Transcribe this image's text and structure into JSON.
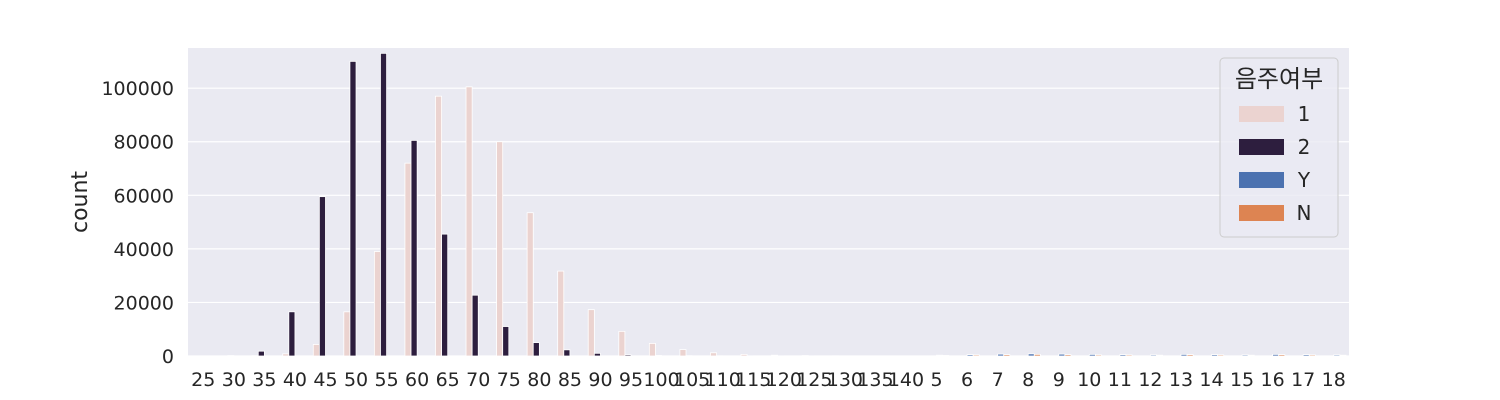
{
  "chart_data": {
    "type": "bar",
    "title": "",
    "xlabel": "",
    "ylabel": "count",
    "ylim": [
      0,
      115000
    ],
    "grid": true,
    "legend_placement": "top-right",
    "yticks": [
      0,
      20000,
      40000,
      60000,
      80000,
      100000
    ],
    "categories": [
      "25",
      "30",
      "35",
      "40",
      "45",
      "50",
      "55",
      "60",
      "65",
      "70",
      "75",
      "80",
      "85",
      "90",
      "95",
      "100",
      "105",
      "110",
      "115",
      "120",
      "125",
      "130",
      "135",
      "140",
      "5",
      "6",
      "7",
      "8",
      "9",
      "10",
      "11",
      "12",
      "13",
      "14",
      "15",
      "16",
      "17",
      "18"
    ],
    "legend_title": "음주여부",
    "series": [
      {
        "name": "1",
        "color": "#EBD3D0",
        "values": [
          0,
          0,
          100,
          800,
          4300,
          16500,
          39000,
          72000,
          97000,
          100500,
          80000,
          53500,
          31700,
          17300,
          9200,
          4700,
          2400,
          1200,
          600,
          300,
          150,
          80,
          40,
          20,
          0,
          0,
          0,
          0,
          0,
          0,
          0,
          0,
          0,
          0,
          0,
          0,
          0,
          0
        ]
      },
      {
        "name": "2",
        "color": "#2D1E3E",
        "values": [
          0,
          150,
          1800,
          16500,
          59500,
          110000,
          113000,
          80500,
          45500,
          22700,
          11000,
          5000,
          2300,
          1000,
          450,
          200,
          100,
          50,
          25,
          15,
          8,
          4,
          2,
          1,
          0,
          0,
          0,
          0,
          0,
          0,
          0,
          0,
          0,
          0,
          0,
          0,
          0,
          0
        ]
      },
      {
        "name": "Y",
        "color": "#4C72B0",
        "values": [
          0,
          0,
          0,
          0,
          0,
          0,
          0,
          0,
          0,
          0,
          0,
          0,
          0,
          0,
          0,
          0,
          0,
          0,
          0,
          0,
          0,
          0,
          0,
          0,
          300,
          500,
          700,
          800,
          700,
          600,
          500,
          400,
          600,
          500,
          400,
          600,
          500,
          400
        ]
      },
      {
        "name": "N",
        "color": "#DD8452",
        "values": [
          0,
          0,
          0,
          0,
          0,
          0,
          0,
          0,
          0,
          0,
          0,
          0,
          0,
          0,
          0,
          0,
          0,
          0,
          0,
          0,
          0,
          0,
          0,
          0,
          200,
          400,
          500,
          600,
          500,
          400,
          400,
          300,
          500,
          400,
          300,
          500,
          400,
          300
        ]
      }
    ]
  }
}
